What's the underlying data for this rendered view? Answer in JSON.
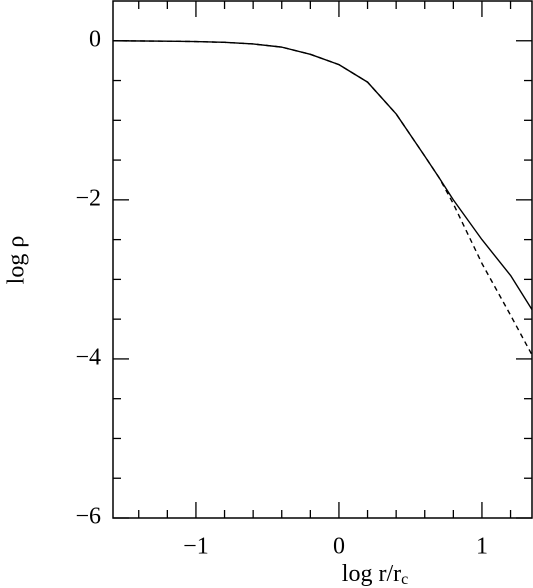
{
  "chart_data": {
    "type": "line",
    "x_label": "log  r/r",
    "x_label_subscript": "c",
    "y_label": "log ρ",
    "xlim": [
      -1.58,
      1.35
    ],
    "ylim": [
      -6,
      0.5
    ],
    "xticks": [
      {
        "value": -1,
        "label": "−1"
      },
      0,
      1
    ],
    "yticks": [
      {
        "value": -6,
        "label": "−6"
      },
      {
        "value": -4,
        "label": "−4"
      },
      {
        "value": -2,
        "label": "−2"
      },
      0
    ],
    "xminor": [
      -1.4,
      -1.2,
      -0.8,
      -0.6,
      -0.4,
      -0.2,
      0.2,
      0.4,
      0.6,
      0.8,
      1.2
    ],
    "yminor": [
      -5.5,
      -5,
      -4.5,
      -3.5,
      -3,
      -2.5,
      -1.5,
      -1,
      -0.5
    ],
    "x": [
      -1.58,
      -1.2,
      -1.0,
      -0.8,
      -0.6,
      -0.4,
      -0.2,
      0,
      0.2,
      0.4,
      0.6,
      0.7,
      0.8,
      1.0,
      1.2,
      1.35
    ],
    "series": [
      {
        "color": "#000000",
        "dash": false,
        "values": [
          0,
          -0.005,
          -0.01,
          -0.02,
          -0.04,
          -0.08,
          -0.17,
          -0.3,
          -0.52,
          -0.92,
          -1.45,
          -1.72,
          -2.0,
          -2.5,
          -2.95,
          -3.38
        ]
      },
      {
        "color": "#000000",
        "dash": true,
        "values": [
          0,
          -0.005,
          -0.01,
          -0.02,
          -0.04,
          -0.08,
          -0.17,
          -0.3,
          -0.52,
          -0.92,
          -1.45,
          -1.72,
          -2.05,
          -2.8,
          -3.45,
          -3.95
        ]
      }
    ]
  }
}
